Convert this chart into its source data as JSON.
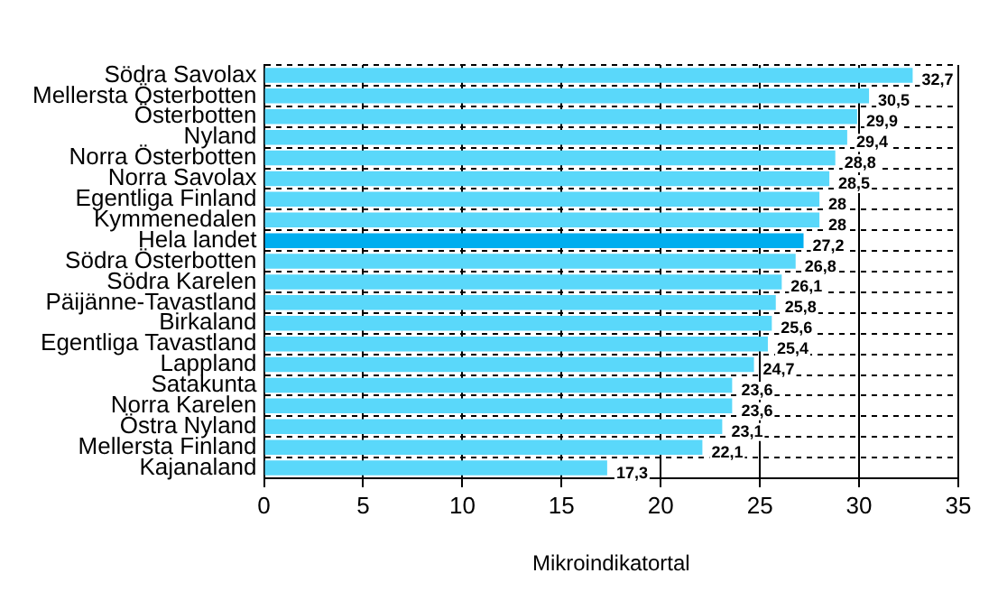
{
  "chart_data": {
    "type": "bar",
    "orientation": "horizontal",
    "xlabel": "Mikroindikatortal",
    "categories": [
      "Södra Savolax",
      "Mellersta Österbotten",
      "Österbotten",
      "Nyland",
      "Norra Österbotten",
      "Norra Savolax",
      "Egentliga Finland",
      "Kymmenedalen",
      "Hela landet",
      "Södra Österbotten",
      "Södra Karelen",
      "Päijänne-Tavastland",
      "Birkaland",
      "Egentliga Tavastland",
      "Lappland",
      "Satakunta",
      "Norra Karelen",
      "Östra Nyland",
      "Mellersta Finland",
      "Kajanaland"
    ],
    "values": [
      32.7,
      30.5,
      29.9,
      29.4,
      28.8,
      28.5,
      28,
      28,
      27.2,
      26.8,
      26.1,
      25.8,
      25.6,
      25.4,
      24.7,
      23.6,
      23.6,
      23.1,
      22.1,
      17.3
    ],
    "value_labels": [
      "32,7",
      "30,5",
      "29,9",
      "29,4",
      "28,8",
      "28,5",
      "28",
      "28",
      "27,2",
      "26,8",
      "26,1",
      "25,8",
      "25,6",
      "25,4",
      "24,7",
      "23,6",
      "23,6",
      "23,1",
      "22,1",
      "17,3"
    ],
    "colors": [
      "#5ad8fa",
      "#5ad8fa",
      "#5ad8fa",
      "#5ad8fa",
      "#5ad8fa",
      "#5ad8fa",
      "#5ad8fa",
      "#5ad8fa",
      "#00aeef",
      "#5ad8fa",
      "#5ad8fa",
      "#5ad8fa",
      "#5ad8fa",
      "#5ad8fa",
      "#5ad8fa",
      "#5ad8fa",
      "#5ad8fa",
      "#5ad8fa",
      "#5ad8fa",
      "#5ad8fa"
    ],
    "xlim": [
      0,
      35
    ],
    "xticks": [
      0,
      5,
      10,
      15,
      20,
      25,
      30,
      35
    ],
    "grid": true,
    "legend": false
  }
}
